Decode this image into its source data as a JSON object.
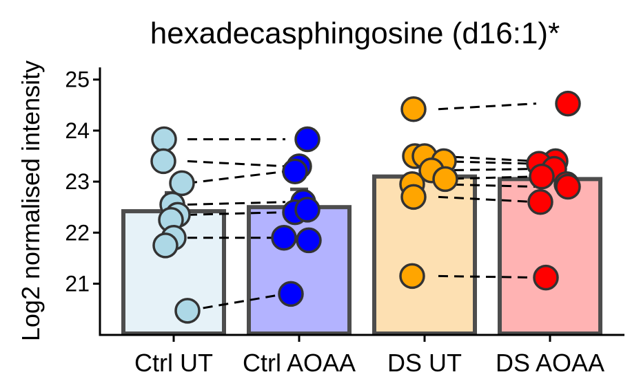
{
  "chart_data": {
    "type": "bar",
    "title": "hexadecasphingosine (d16:1)*",
    "xlabel": "",
    "ylabel": "Log2 normalised intensity",
    "ylim": [
      20,
      25.25
    ],
    "yticks": [
      21,
      22,
      23,
      24,
      25
    ],
    "categories": [
      "Ctrl UT",
      "Ctrl AOAA",
      "DS UT",
      "DS AOAA"
    ],
    "values": [
      22.42,
      22.5,
      23.1,
      23.05
    ],
    "error_upper": [
      22.78,
      22.85,
      null,
      null
    ],
    "bar_fill_colors": [
      "#e6f2f8",
      "#b3b3ff",
      "#fde0b2",
      "#ffb3b3"
    ],
    "point_colors": [
      "#add8e6",
      "#0000ff",
      "#ffa500",
      "#ff0000"
    ],
    "bar_outline_color": "#4d4d4d",
    "points": [
      [
        23.83,
        23.4,
        22.97,
        22.55,
        22.35,
        22.25,
        21.9,
        21.75,
        20.47
      ],
      [
        23.83,
        23.3,
        23.2,
        22.6,
        22.4,
        22.45,
        21.9,
        21.85,
        20.8
      ],
      [
        24.42,
        23.5,
        23.5,
        23.4,
        23.22,
        23.05,
        22.95,
        22.7,
        21.15
      ],
      [
        24.53,
        23.4,
        23.35,
        23.25,
        23.1,
        22.95,
        22.9,
        22.6,
        21.12
      ]
    ],
    "pairs_left": [
      [
        23.83,
        23.83
      ],
      [
        23.4,
        23.3
      ],
      [
        22.97,
        23.2
      ],
      [
        22.55,
        22.6
      ],
      [
        22.35,
        22.4
      ],
      [
        21.9,
        21.9
      ],
      [
        20.47,
        20.8
      ]
    ],
    "pairs_right": [
      [
        24.42,
        24.53
      ],
      [
        23.5,
        23.4
      ],
      [
        23.4,
        23.35
      ],
      [
        23.22,
        23.25
      ],
      [
        23.05,
        23.1
      ],
      [
        22.95,
        22.9
      ],
      [
        22.7,
        22.6
      ],
      [
        21.15,
        21.12
      ]
    ],
    "grid": false,
    "legend": "none"
  }
}
